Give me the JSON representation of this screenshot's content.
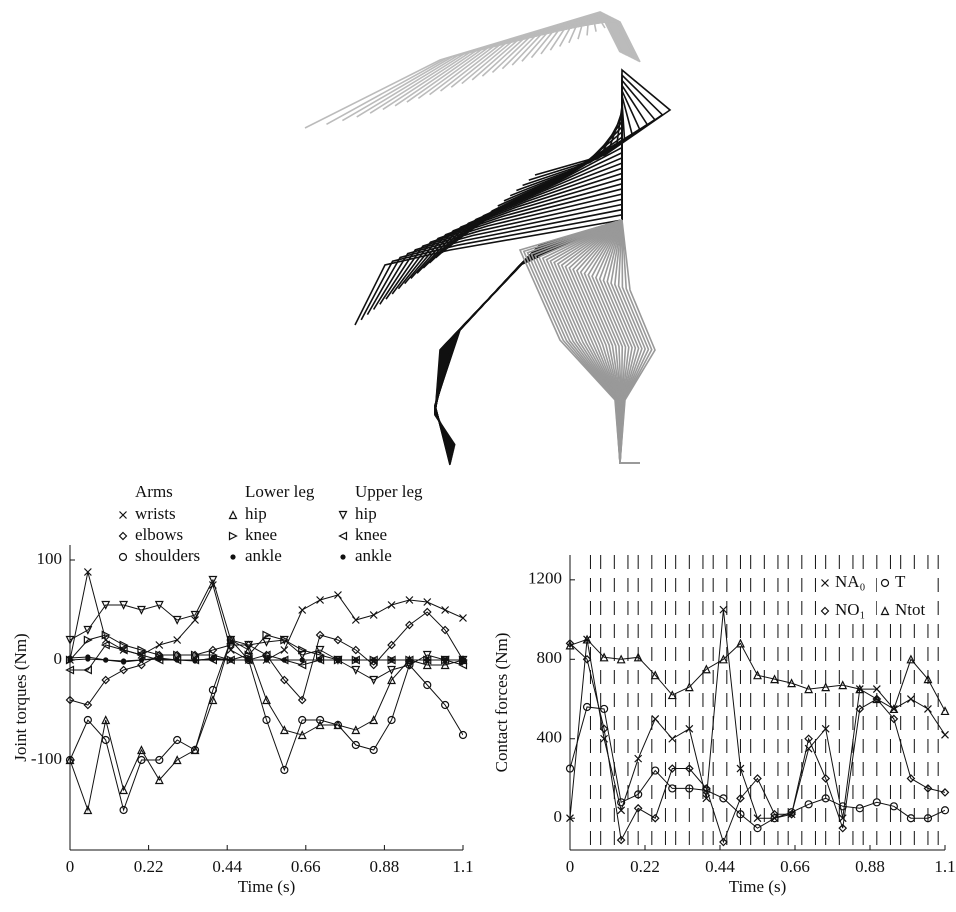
{
  "chart_data": [
    {
      "type": "line",
      "x_label": "Time (s)",
      "y_label": "Joint torques (Nm)",
      "legend_groups": [
        "Arms",
        "Lower leg",
        "Upper leg"
      ],
      "x": [
        0,
        0.05,
        0.1,
        0.15,
        0.2,
        0.25,
        0.3,
        0.35,
        0.4,
        0.45,
        0.5,
        0.55,
        0.6,
        0.65,
        0.7,
        0.75,
        0.8,
        0.85,
        0.9,
        0.95,
        1.0,
        1.05,
        1.1
      ],
      "xlim": [
        0,
        1.1
      ],
      "xticks": [
        0,
        0.22,
        0.44,
        0.66,
        0.88,
        1.1
      ],
      "ylim": [
        -190,
        115
      ],
      "yticks": [
        -100,
        0,
        100
      ],
      "series": [
        {
          "name": "wrists",
          "marker": "x",
          "color": "#111",
          "values": [
            0,
            88,
            20,
            10,
            5,
            15,
            20,
            40,
            75,
            10,
            0,
            0,
            10,
            50,
            60,
            65,
            40,
            45,
            55,
            60,
            58,
            50,
            42
          ]
        },
        {
          "name": "elbows",
          "marker": "diamond",
          "color": "#111",
          "values": [
            -40,
            -45,
            -20,
            -10,
            -5,
            5,
            5,
            5,
            10,
            15,
            15,
            5,
            -20,
            -40,
            25,
            20,
            10,
            -5,
            15,
            35,
            48,
            30,
            0
          ]
        },
        {
          "name": "shoulders",
          "marker": "circle",
          "color": "#111",
          "values": [
            -100,
            -60,
            -80,
            -150,
            -100,
            -100,
            -80,
            -90,
            -30,
            20,
            0,
            -60,
            -110,
            -60,
            -60,
            -65,
            -85,
            -90,
            -60,
            -5,
            -25,
            -45,
            -75
          ]
        },
        {
          "name": "hip",
          "marker": "triangle-up",
          "color": "#111",
          "values": [
            -100,
            -150,
            -60,
            -130,
            -90,
            -120,
            -100,
            -90,
            -40,
            20,
            10,
            -40,
            -70,
            -75,
            -65,
            -65,
            -70,
            -60,
            -20,
            0,
            -5,
            -5,
            0
          ]
        },
        {
          "name": "knee",
          "marker": "triangle-right",
          "color": "#111",
          "values": [
            0,
            20,
            25,
            15,
            10,
            5,
            5,
            5,
            5,
            0,
            5,
            25,
            20,
            10,
            5,
            0,
            0,
            0,
            0,
            0,
            0,
            0,
            0
          ]
        },
        {
          "name": "ankle",
          "marker": "dot",
          "color": "#111",
          "values": [
            0,
            1,
            0,
            -1,
            0,
            1,
            0,
            0,
            1,
            0,
            0,
            0,
            0,
            0,
            0,
            0,
            0,
            0,
            0,
            0,
            0,
            0,
            0
          ]
        },
        {
          "name": "hip",
          "marker": "triangle-down",
          "color": "#111",
          "values": [
            20,
            30,
            55,
            55,
            50,
            55,
            40,
            45,
            80,
            20,
            15,
            18,
            20,
            5,
            10,
            0,
            -10,
            -20,
            -10,
            -5,
            5,
            0,
            0
          ]
        },
        {
          "name": "knee",
          "marker": "triangle-left",
          "color": "#111",
          "values": [
            -10,
            -10,
            15,
            10,
            5,
            0,
            0,
            0,
            0,
            0,
            0,
            5,
            0,
            -5,
            0,
            0,
            0,
            0,
            0,
            0,
            0,
            0,
            -5
          ]
        },
        {
          "name": "ankle",
          "marker": "dot",
          "color": "#111",
          "values": [
            2,
            3,
            0,
            -2,
            0,
            2,
            0,
            -1,
            2,
            0,
            0,
            0,
            0,
            0,
            0,
            0,
            0,
            0,
            0,
            0,
            0,
            0,
            0
          ]
        }
      ]
    },
    {
      "type": "line",
      "x_label": "Time (s)",
      "y_label": "Contact forces (Nm)",
      "x": [
        0,
        0.05,
        0.1,
        0.15,
        0.2,
        0.25,
        0.3,
        0.35,
        0.4,
        0.45,
        0.5,
        0.55,
        0.6,
        0.65,
        0.7,
        0.75,
        0.8,
        0.85,
        0.9,
        0.95,
        1.0,
        1.05,
        1.1
      ],
      "xlim": [
        0,
        1.1
      ],
      "xticks": [
        0,
        0.22,
        0.44,
        0.66,
        0.88,
        1.1
      ],
      "ylim": [
        -160,
        1325
      ],
      "yticks": [
        0,
        400,
        800,
        1200
      ],
      "vertical_lines": [
        0.06,
        0.09,
        0.13,
        0.17,
        0.2,
        0.24,
        0.28,
        0.31,
        0.35,
        0.39,
        0.42,
        0.46,
        0.5,
        0.53,
        0.57,
        0.61,
        0.64,
        0.68,
        0.72,
        0.75,
        0.79,
        0.83,
        0.86,
        0.9,
        0.94,
        0.97,
        1.01,
        1.05,
        1.08
      ],
      "series": [
        {
          "name": "NA₀",
          "marker": "x",
          "color": "#111",
          "values": [
            0,
            900,
            400,
            40,
            300,
            500,
            400,
            450,
            100,
            1050,
            250,
            0,
            0,
            20,
            350,
            450,
            0,
            650,
            650,
            550,
            600,
            550,
            420
          ]
        },
        {
          "name": "T",
          "marker": "circle",
          "color": "#111",
          "values": [
            250,
            560,
            550,
            80,
            120,
            240,
            150,
            150,
            140,
            100,
            20,
            -50,
            0,
            30,
            70,
            100,
            60,
            50,
            80,
            60,
            0,
            0,
            40
          ]
        },
        {
          "name": "NO₁",
          "marker": "diamond",
          "color": "#111",
          "values": [
            880,
            800,
            450,
            -110,
            50,
            0,
            250,
            250,
            150,
            -120,
            100,
            200,
            20,
            20,
            400,
            200,
            -50,
            550,
            600,
            500,
            200,
            150,
            130
          ]
        },
        {
          "name": "Ntot",
          "marker": "triangle-up",
          "color": "#111",
          "values": [
            870,
            900,
            810,
            800,
            810,
            720,
            620,
            660,
            750,
            800,
            880,
            720,
            700,
            680,
            650,
            660,
            670,
            650,
            600,
            550,
            800,
            700,
            540
          ]
        }
      ]
    }
  ]
}
